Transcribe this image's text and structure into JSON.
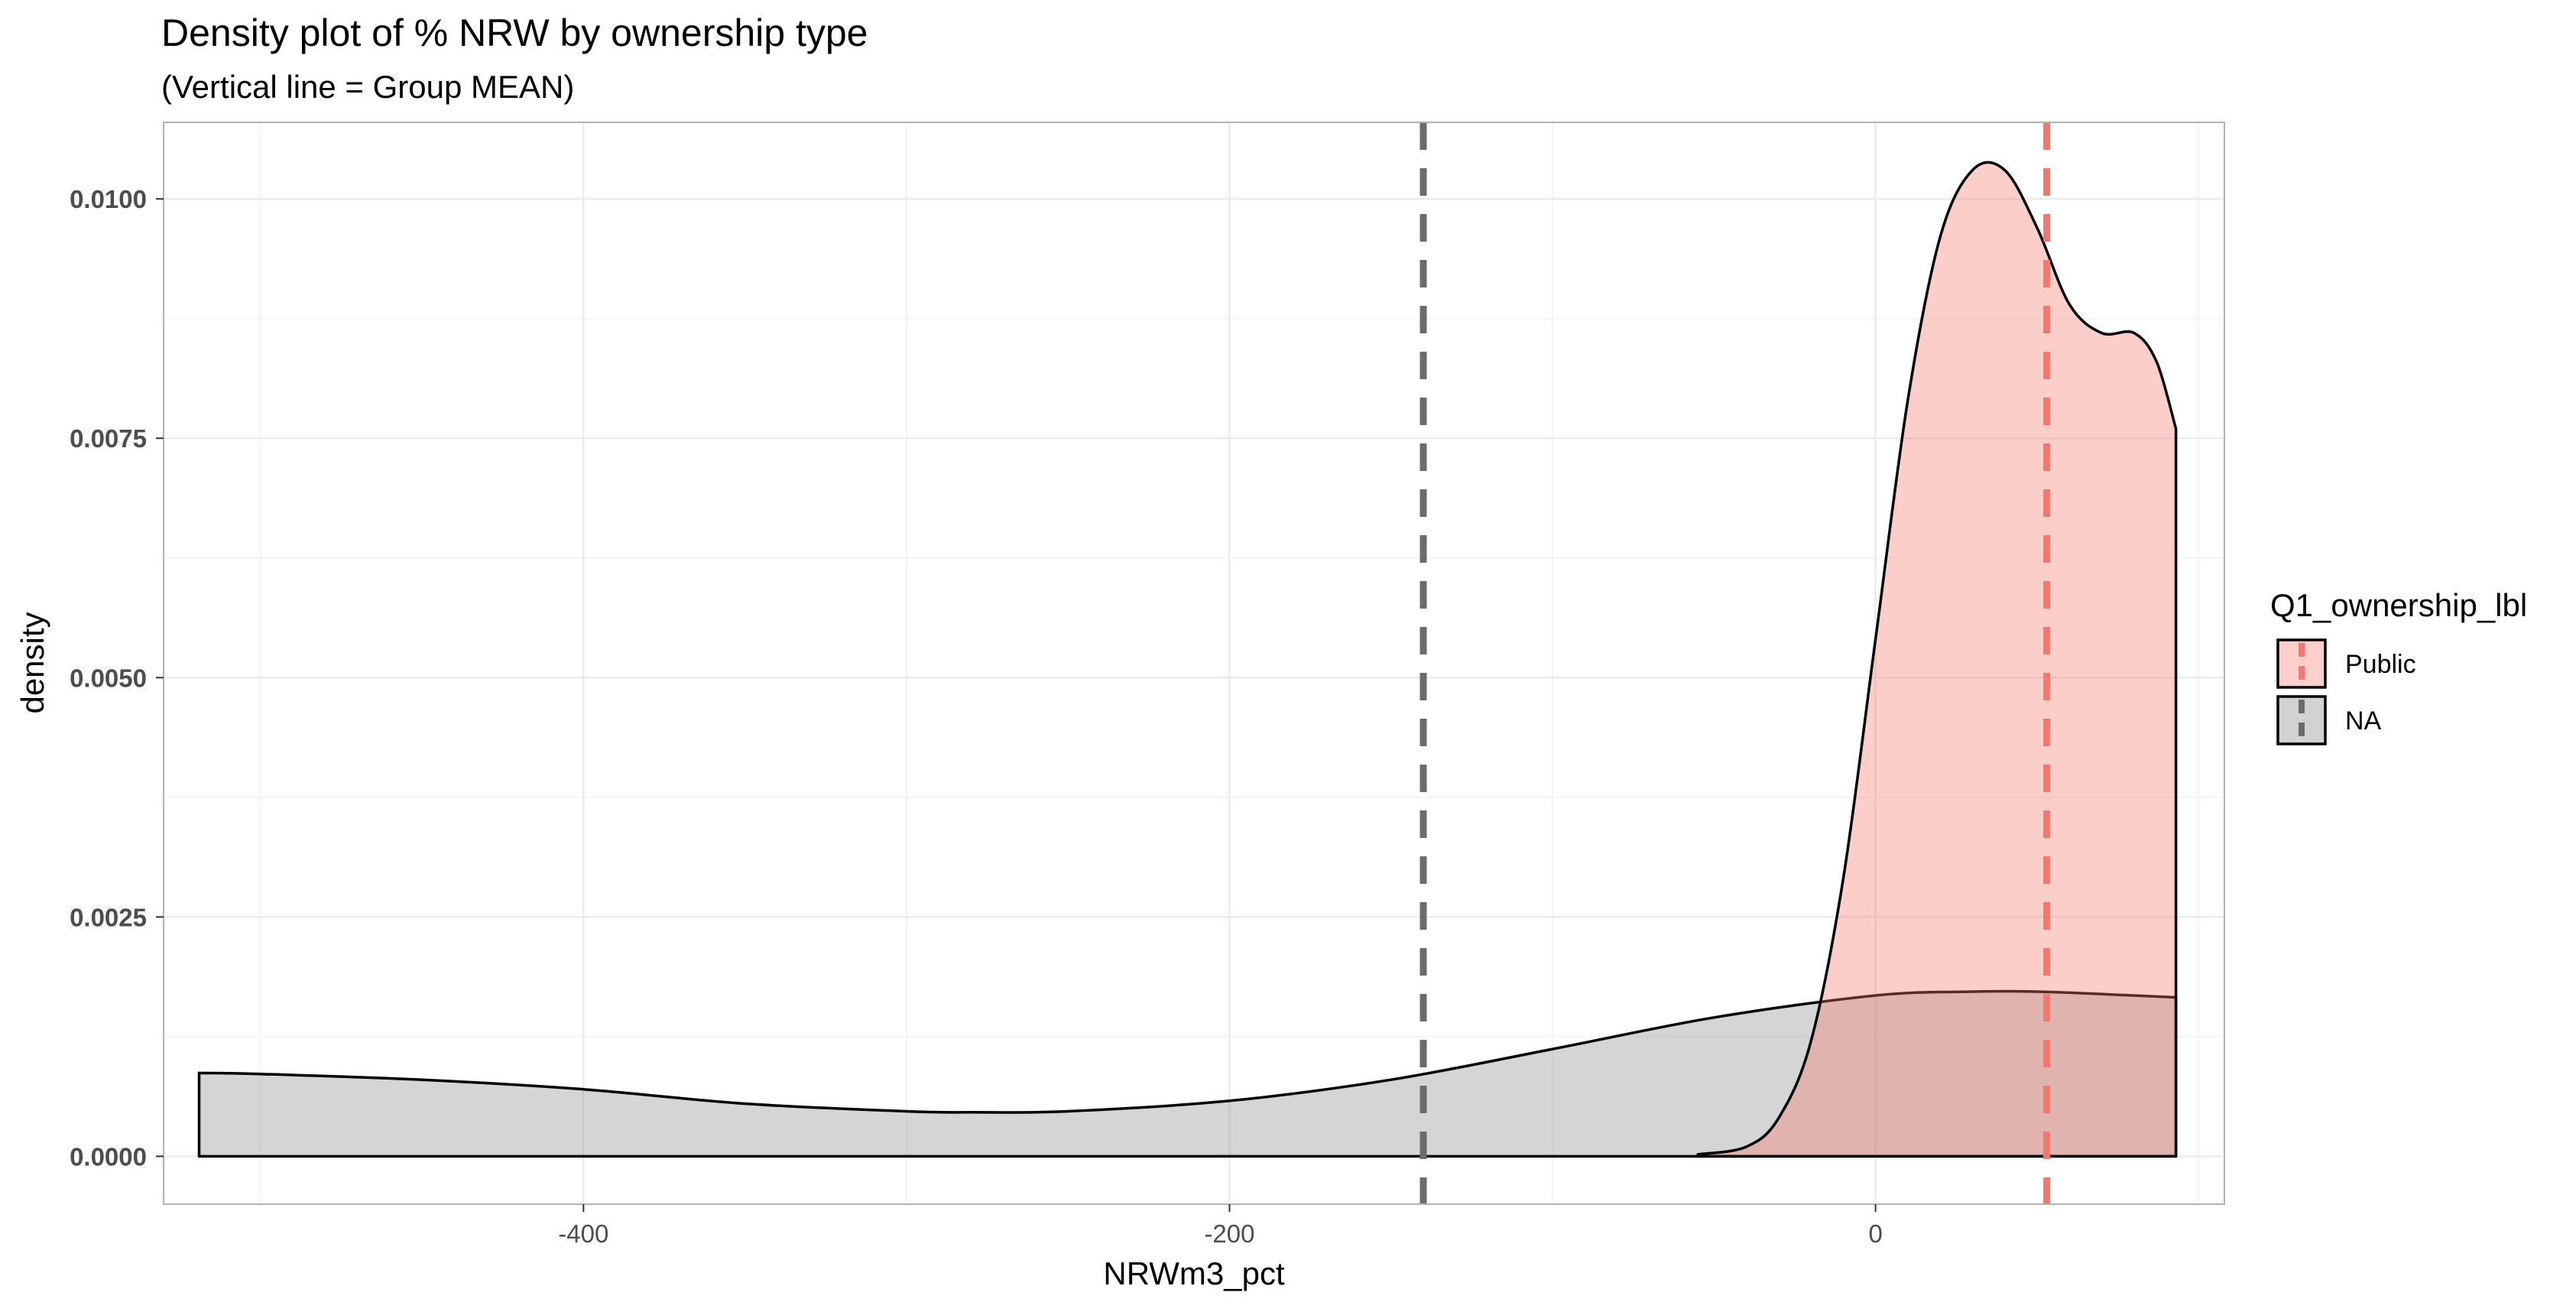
{
  "chart_data": {
    "type": "area",
    "title": "Density plot of % NRW by ownership type",
    "subtitle": "(Vertical line = Group MEAN)",
    "xlabel": "NRWm3_pct",
    "ylabel": "density",
    "xlim": [
      -530,
      108
    ],
    "ylim": [
      -0.0005,
      0.0108
    ],
    "x_ticks": [
      -400,
      -200,
      0
    ],
    "x_tick_labels": [
      "-400",
      "-200",
      "0"
    ],
    "y_ticks": [
      0,
      0.0025,
      0.005,
      0.0075,
      0.01
    ],
    "y_tick_labels": [
      "0.0000",
      "0.0025",
      "0.0050",
      "0.0075",
      "0.0100"
    ],
    "grid": true,
    "legend": {
      "title": "Q1_ownership_lbl",
      "position": "right",
      "items": [
        {
          "label": "Public",
          "fill": "#f8766d",
          "line": "#f8766d"
        },
        {
          "label": "NA",
          "fill": "#7f7f7f",
          "line": "#6b6b6b"
        }
      ]
    },
    "series": [
      {
        "name": "NA",
        "fill": "#7f7f7f",
        "fill_opacity": 0.33,
        "mean": -140,
        "mean_color": "#6b6b6b",
        "x": [
          -519,
          -500,
          -450,
          -400,
          -350,
          -300,
          -280,
          -250,
          -200,
          -150,
          -100,
          -50,
          0,
          30,
          50,
          80,
          93
        ],
        "y": [
          0.00087,
          0.00086,
          0.0008,
          0.0007,
          0.00055,
          0.00047,
          0.00046,
          0.00047,
          0.00058,
          0.0008,
          0.00112,
          0.00145,
          0.00168,
          0.00172,
          0.00172,
          0.00168,
          0.00166
        ]
      },
      {
        "name": "Public",
        "fill": "#f8766d",
        "fill_opacity": 0.36,
        "mean": 53,
        "mean_color": "#f8766d",
        "x": [
          -55,
          -40,
          -30,
          -20,
          -10,
          0,
          10,
          20,
          30,
          40,
          50,
          60,
          70,
          80,
          87,
          93
        ],
        "y": [
          2e-05,
          0.0001,
          0.0004,
          0.0012,
          0.0029,
          0.0054,
          0.0079,
          0.0096,
          0.0103,
          0.0103,
          0.0097,
          0.0089,
          0.0086,
          0.0086,
          0.0083,
          0.0076
        ]
      }
    ]
  }
}
